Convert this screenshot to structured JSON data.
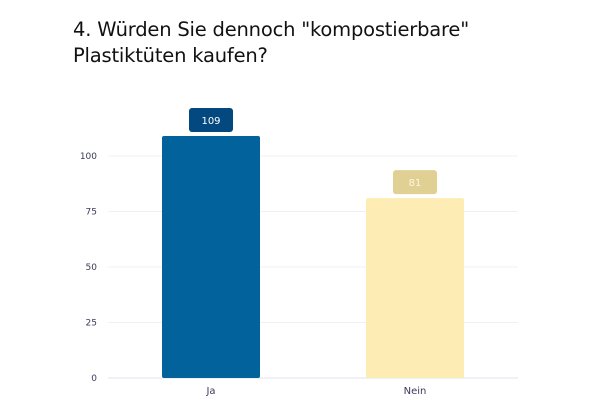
{
  "chart_data": {
    "type": "bar",
    "title": "4. Würden Sie dennoch \"kompostierbare\" Plastiktüten kaufen?",
    "xlabel": "",
    "ylabel": "",
    "categories": [
      "Ja",
      "Nein"
    ],
    "values": [
      109,
      81
    ],
    "ylim": [
      0,
      109
    ],
    "yticks": [
      0,
      25,
      50,
      75,
      100
    ],
    "grid": true,
    "legend": "none",
    "bar_colors": [
      "#02629c",
      "#fdecb3"
    ],
    "label_colors": [
      "#03497f",
      "#e0d094"
    ],
    "label_text_colors": [
      "#ffffff",
      "#fdf6dc"
    ]
  }
}
